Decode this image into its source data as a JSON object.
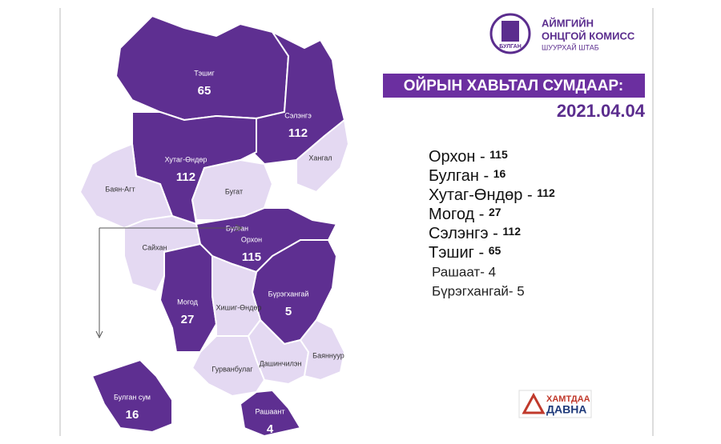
{
  "header": {
    "emblem": "БУЛГАН",
    "org_line1": "АЙМГИЙН",
    "org_line2": "ОНЦГОЙ КОМИСС",
    "org_line3": "ШУУРХАЙ ШТАБ"
  },
  "banner": "ОЙРЫН ХАВЬТАЛ СУМДААР:",
  "date": "2021.04.04",
  "list": [
    {
      "name": "Орхон - ",
      "count": 115
    },
    {
      "name": "Булган - ",
      "count": 16
    },
    {
      "name": "Хутаг-Өндөр - ",
      "count": 112
    },
    {
      "name": "Могод - ",
      "count": 27
    },
    {
      "name": "Сэлэнгэ - ",
      "count": 112
    },
    {
      "name": "Тэшиг - ",
      "count": 65
    }
  ],
  "notes": [
    "Рашаат- 4",
    "Бүрэгхангай- 5"
  ],
  "regions": [
    {
      "name": "Тэшиг",
      "count": 65
    },
    {
      "name": "Сэлэнгэ",
      "count": 112
    },
    {
      "name": "Хангал"
    },
    {
      "name": "Хутаг-Өндөр",
      "count": 112
    },
    {
      "name": "Баян-Агт"
    },
    {
      "name": "Бугат"
    },
    {
      "name": "Сайхан"
    },
    {
      "name": "Орхон",
      "count": 115
    },
    {
      "name": "Могод",
      "count": 27
    },
    {
      "name": "Бүрэгхангай",
      "count": 5
    },
    {
      "name": "Хишиг-Өндөр"
    },
    {
      "name": "Гурванбулаг"
    },
    {
      "name": "Дашинчилэн"
    },
    {
      "name": "Баяннуур"
    },
    {
      "name": "Рашаант",
      "count": 4
    },
    {
      "name": "Булган сум",
      "count": 16
    }
  ],
  "city": "Булган",
  "logo": {
    "line1": "ХАМТДАА",
    "line2": "ДАВНА"
  }
}
